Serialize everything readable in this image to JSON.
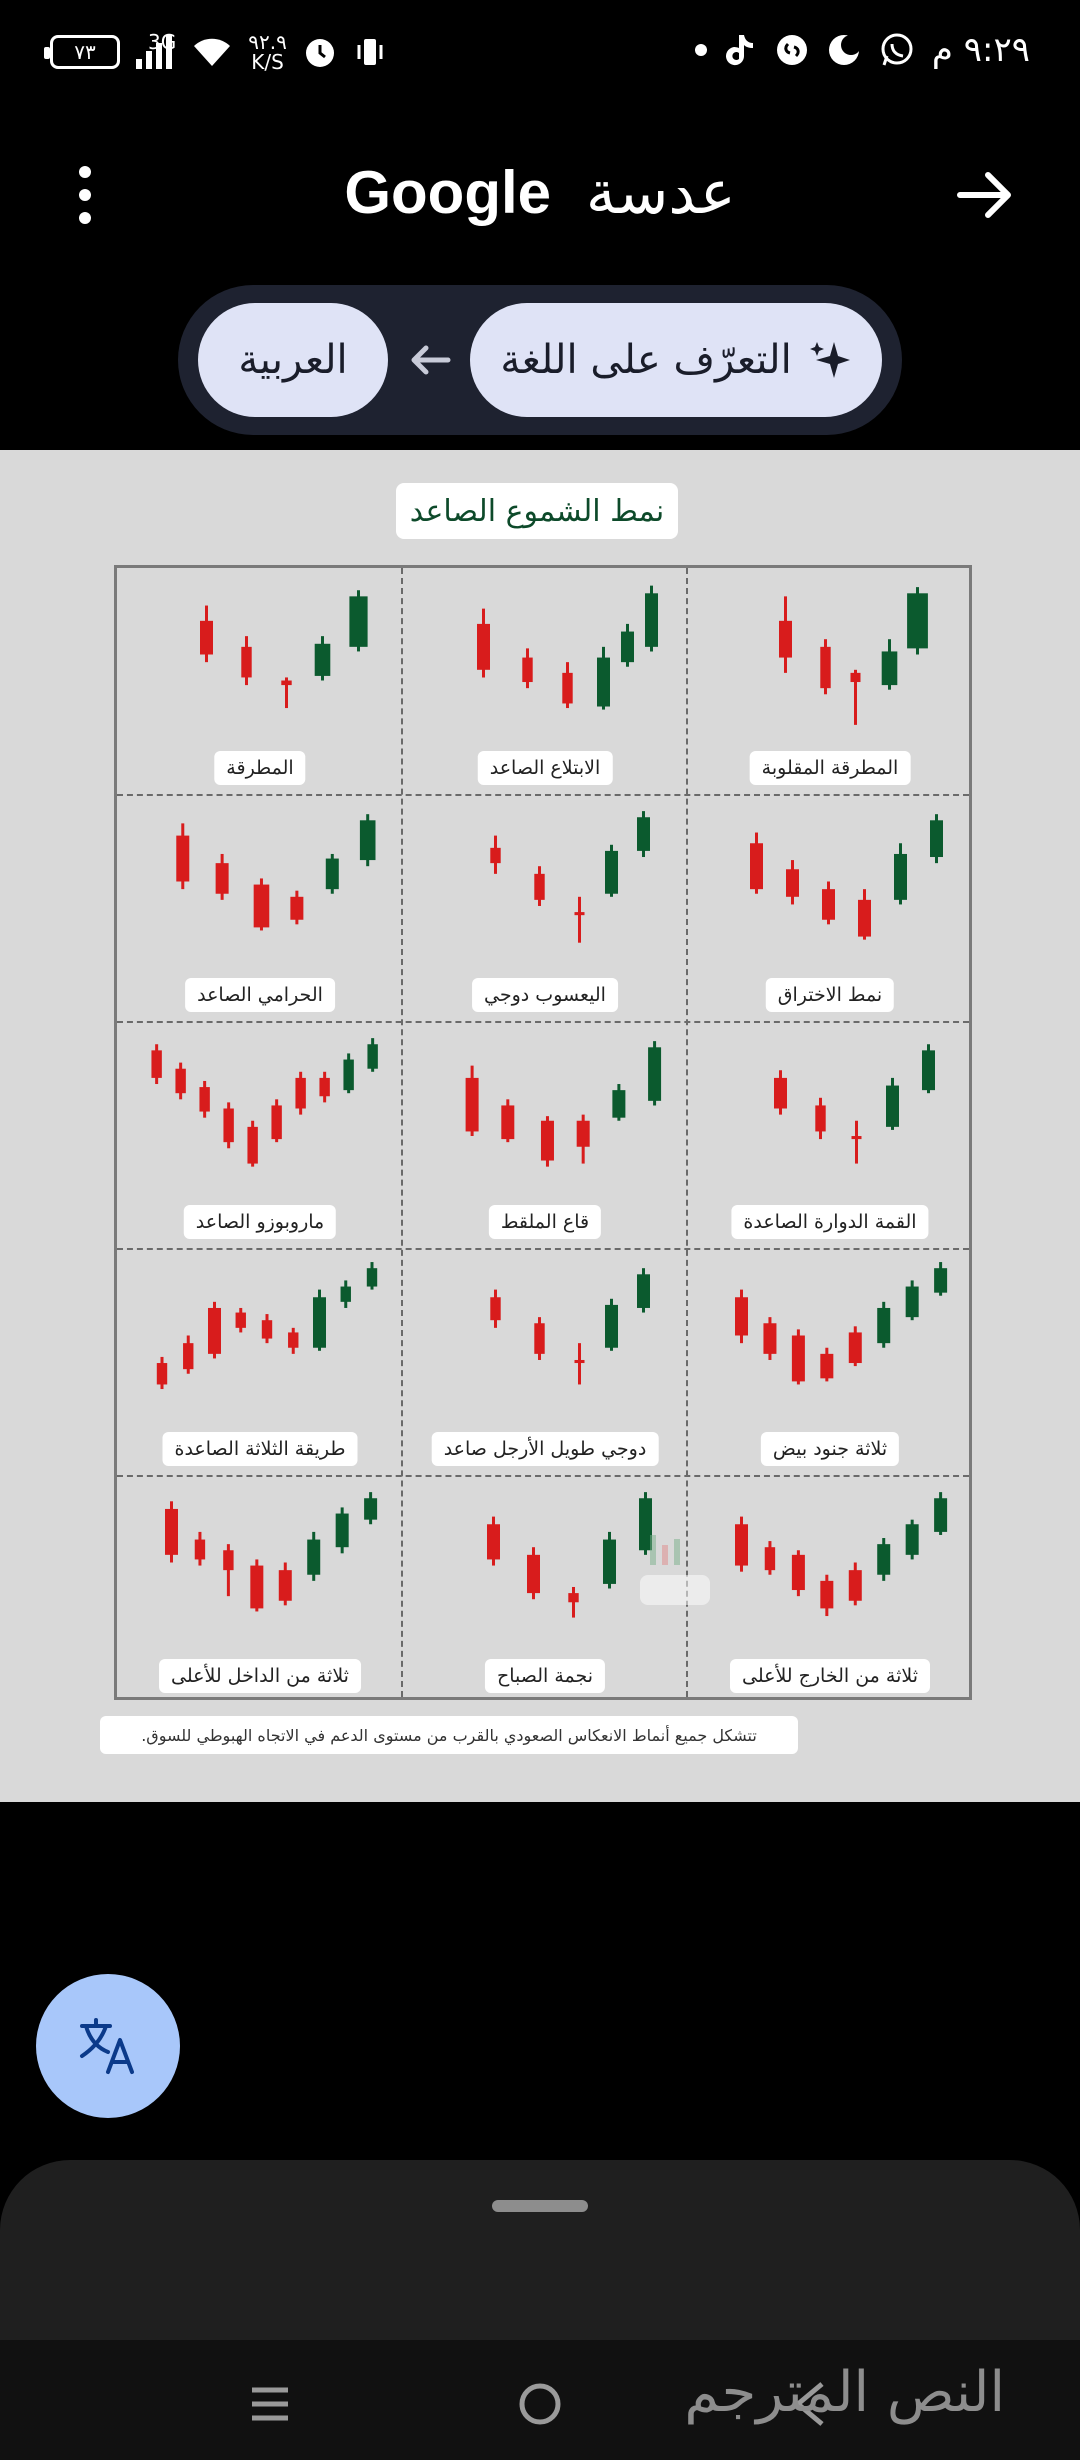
{
  "status_bar": {
    "time": "٩:٢٩ م",
    "battery": "٧٣",
    "network": "3G",
    "data_speed_value": "٩٢.٩",
    "data_speed_unit": "K/S",
    "icons": [
      "whatsapp-icon",
      "moon-icon",
      "shazam-icon",
      "tiktok-icon",
      "dot-icon",
      "vibrate-icon",
      "alarm-icon",
      "wifi-icon",
      "signal-icon",
      "battery-icon"
    ]
  },
  "header": {
    "brand": "Google",
    "app_name": "عدسة",
    "menu_icon": "more-vert-icon",
    "back_icon": "arrow-forward-icon"
  },
  "language": {
    "from_label": "التعرّف على اللغة",
    "to_label": "العربية",
    "from_icon": "sparkle-icon",
    "arrow_icon": "arrow-left-icon"
  },
  "image": {
    "title": "نمط الشموع الصاعد",
    "patterns": [
      {
        "label": "المطرقة المقلوبة",
        "candles": [
          [
            0.3,
            0.05,
            0.28,
            0.52,
            0.12,
            0.62
          ],
          [
            0.5,
            0.04,
            0.45,
            0.72,
            0.4,
            0.76
          ],
          [
            0.65,
            0.03,
            0.62,
            0.68,
            0.6,
            0.96
          ],
          [
            0.82,
            0.06,
            0.48,
            0.7,
            0.4,
            0.73
          ],
          [
            0.96,
            0.08,
            0.1,
            0.46,
            0.06,
            0.5
          ]
        ]
      },
      {
        "label": "الابتلاع الصاعد",
        "candles": [
          [
            0.28,
            0.05,
            0.3,
            0.6,
            0.2,
            0.65
          ],
          [
            0.5,
            0.04,
            0.52,
            0.68,
            0.46,
            0.72
          ],
          [
            0.7,
            0.04,
            0.62,
            0.82,
            0.55,
            0.85
          ],
          [
            0.88,
            0.05,
            0.52,
            0.84,
            0.45,
            0.86
          ],
          [
            1.0,
            0.05,
            0.35,
            0.55,
            0.3,
            0.58
          ],
          [
            1.12,
            0.05,
            0.1,
            0.45,
            0.05,
            0.48
          ]
        ]
      },
      {
        "label": "المطرقة",
        "candles": [
          [
            0.3,
            0.05,
            0.28,
            0.5,
            0.18,
            0.55
          ],
          [
            0.5,
            0.04,
            0.45,
            0.65,
            0.38,
            0.7
          ],
          [
            0.7,
            0.04,
            0.67,
            0.7,
            0.65,
            0.85
          ],
          [
            0.88,
            0.06,
            0.43,
            0.64,
            0.38,
            0.67
          ],
          [
            1.06,
            0.07,
            0.12,
            0.45,
            0.08,
            0.48
          ]
        ]
      },
      {
        "label": "نمط الاختراق",
        "candles": [
          [
            0.22,
            0.05,
            0.25,
            0.55,
            0.18,
            0.58
          ],
          [
            0.4,
            0.05,
            0.42,
            0.6,
            0.36,
            0.65
          ],
          [
            0.58,
            0.05,
            0.55,
            0.75,
            0.5,
            0.78
          ],
          [
            0.76,
            0.05,
            0.62,
            0.86,
            0.55,
            0.88
          ],
          [
            0.94,
            0.05,
            0.32,
            0.62,
            0.25,
            0.65
          ],
          [
            1.12,
            0.05,
            0.1,
            0.34,
            0.06,
            0.38
          ]
        ]
      },
      {
        "label": "اليعسوب دوجي",
        "candles": [
          [
            0.3,
            0.04,
            0.28,
            0.38,
            0.2,
            0.45
          ],
          [
            0.52,
            0.04,
            0.45,
            0.62,
            0.4,
            0.66
          ],
          [
            0.72,
            0.02,
            0.7,
            0.72,
            0.6,
            0.9
          ],
          [
            0.88,
            0.05,
            0.3,
            0.58,
            0.26,
            0.6
          ],
          [
            1.04,
            0.05,
            0.08,
            0.3,
            0.04,
            0.34
          ]
        ]
      },
      {
        "label": "الحرامي الصاعد",
        "candles": [
          [
            0.22,
            0.05,
            0.2,
            0.5,
            0.12,
            0.55
          ],
          [
            0.42,
            0.05,
            0.38,
            0.58,
            0.32,
            0.62
          ],
          [
            0.62,
            0.06,
            0.52,
            0.8,
            0.48,
            0.82
          ],
          [
            0.8,
            0.05,
            0.6,
            0.75,
            0.56,
            0.78
          ],
          [
            0.98,
            0.05,
            0.35,
            0.55,
            0.32,
            0.58
          ],
          [
            1.16,
            0.06,
            0.1,
            0.36,
            0.06,
            0.4
          ]
        ]
      },
      {
        "label": "القمة الدوارة الصاعدة",
        "candles": [
          [
            0.3,
            0.05,
            0.3,
            0.5,
            0.25,
            0.54
          ],
          [
            0.5,
            0.04,
            0.48,
            0.65,
            0.43,
            0.7
          ],
          [
            0.68,
            0.02,
            0.68,
            0.7,
            0.58,
            0.86
          ],
          [
            0.86,
            0.05,
            0.35,
            0.62,
            0.3,
            0.64
          ],
          [
            1.04,
            0.05,
            0.12,
            0.38,
            0.08,
            0.4
          ]
        ]
      },
      {
        "label": "قاع الملقط",
        "candles": [
          [
            0.24,
            0.05,
            0.3,
            0.65,
            0.22,
            0.68
          ],
          [
            0.42,
            0.05,
            0.48,
            0.7,
            0.44,
            0.72
          ],
          [
            0.62,
            0.05,
            0.58,
            0.84,
            0.55,
            0.88
          ],
          [
            0.8,
            0.05,
            0.58,
            0.75,
            0.54,
            0.86
          ],
          [
            0.98,
            0.05,
            0.38,
            0.56,
            0.34,
            0.58
          ],
          [
            1.16,
            0.05,
            0.1,
            0.45,
            0.06,
            0.48
          ]
        ]
      },
      {
        "label": "ماروبوزو الصاعد",
        "candles": [
          [
            0.1,
            0.04,
            0.12,
            0.3,
            0.08,
            0.34
          ],
          [
            0.24,
            0.04,
            0.24,
            0.4,
            0.2,
            0.44
          ],
          [
            0.38,
            0.04,
            0.36,
            0.52,
            0.32,
            0.56
          ],
          [
            0.52,
            0.04,
            0.5,
            0.72,
            0.46,
            0.76
          ],
          [
            0.66,
            0.04,
            0.62,
            0.86,
            0.58,
            0.88
          ],
          [
            0.8,
            0.04,
            0.48,
            0.7,
            0.44,
            0.72
          ],
          [
            0.94,
            0.04,
            0.3,
            0.5,
            0.26,
            0.54
          ],
          [
            1.08,
            0.04,
            0.3,
            0.42,
            0.26,
            0.46
          ],
          [
            1.22,
            0.04,
            0.18,
            0.38,
            0.14,
            0.4
          ],
          [
            1.36,
            0.04,
            0.08,
            0.24,
            0.04,
            0.26
          ]
        ]
      },
      {
        "label": "ثلاثة جنود بيض",
        "candles": [
          [
            0.18,
            0.05,
            0.25,
            0.5,
            0.2,
            0.55
          ],
          [
            0.34,
            0.05,
            0.42,
            0.62,
            0.38,
            0.66
          ],
          [
            0.5,
            0.05,
            0.5,
            0.8,
            0.46,
            0.82
          ],
          [
            0.66,
            0.05,
            0.62,
            0.78,
            0.58,
            0.8
          ],
          [
            0.82,
            0.05,
            0.48,
            0.68,
            0.44,
            0.7
          ],
          [
            0.98,
            0.05,
            0.32,
            0.55,
            0.28,
            0.58
          ],
          [
            1.14,
            0.05,
            0.18,
            0.38,
            0.14,
            0.4
          ],
          [
            1.3,
            0.05,
            0.06,
            0.22,
            0.02,
            0.24
          ]
        ]
      },
      {
        "label": "دوجي طويل الأرجل صاعد",
        "candles": [
          [
            0.3,
            0.04,
            0.25,
            0.4,
            0.2,
            0.45
          ],
          [
            0.52,
            0.04,
            0.42,
            0.62,
            0.38,
            0.66
          ],
          [
            0.72,
            0.02,
            0.66,
            0.68,
            0.55,
            0.82
          ],
          [
            0.88,
            0.05,
            0.3,
            0.58,
            0.26,
            0.6
          ],
          [
            1.04,
            0.05,
            0.1,
            0.32,
            0.06,
            0.35
          ]
        ]
      },
      {
        "label": "طريقة الثلاثة الصاعدة",
        "candles": [
          [
            0.12,
            0.04,
            0.68,
            0.82,
            0.64,
            0.85
          ],
          [
            0.26,
            0.04,
            0.55,
            0.72,
            0.5,
            0.75
          ],
          [
            0.4,
            0.05,
            0.32,
            0.62,
            0.28,
            0.65
          ],
          [
            0.54,
            0.04,
            0.35,
            0.45,
            0.32,
            0.48
          ],
          [
            0.68,
            0.04,
            0.4,
            0.52,
            0.36,
            0.55
          ],
          [
            0.82,
            0.04,
            0.48,
            0.58,
            0.45,
            0.62
          ],
          [
            0.96,
            0.05,
            0.25,
            0.58,
            0.2,
            0.6
          ],
          [
            1.1,
            0.04,
            0.18,
            0.28,
            0.14,
            0.32
          ],
          [
            1.24,
            0.04,
            0.06,
            0.18,
            0.02,
            0.2
          ]
        ]
      },
      {
        "label": "ثلاثة من الخارج للأعلى",
        "candles": [
          [
            0.18,
            0.05,
            0.25,
            0.52,
            0.2,
            0.56
          ],
          [
            0.34,
            0.04,
            0.4,
            0.55,
            0.36,
            0.58
          ],
          [
            0.5,
            0.05,
            0.45,
            0.68,
            0.42,
            0.72
          ],
          [
            0.66,
            0.05,
            0.62,
            0.8,
            0.58,
            0.85
          ],
          [
            0.82,
            0.05,
            0.55,
            0.75,
            0.5,
            0.78
          ],
          [
            0.98,
            0.05,
            0.38,
            0.58,
            0.34,
            0.62
          ],
          [
            1.14,
            0.05,
            0.25,
            0.45,
            0.22,
            0.48
          ],
          [
            1.3,
            0.05,
            0.08,
            0.3,
            0.04,
            0.32
          ]
        ]
      },
      {
        "label": "نجمة الصباح",
        "candles": [
          [
            0.3,
            0.05,
            0.25,
            0.48,
            0.2,
            0.52
          ],
          [
            0.5,
            0.05,
            0.45,
            0.7,
            0.4,
            0.74
          ],
          [
            0.7,
            0.04,
            0.7,
            0.76,
            0.66,
            0.86
          ],
          [
            0.88,
            0.05,
            0.35,
            0.64,
            0.3,
            0.67
          ],
          [
            1.06,
            0.05,
            0.08,
            0.42,
            0.04,
            0.45
          ]
        ]
      },
      {
        "label": "ثلاثة من الداخل للأعلى",
        "candles": [
          [
            0.18,
            0.05,
            0.15,
            0.45,
            0.1,
            0.5
          ],
          [
            0.34,
            0.04,
            0.35,
            0.48,
            0.3,
            0.52
          ],
          [
            0.5,
            0.04,
            0.42,
            0.55,
            0.38,
            0.72
          ],
          [
            0.66,
            0.05,
            0.52,
            0.8,
            0.48,
            0.82
          ],
          [
            0.82,
            0.05,
            0.55,
            0.75,
            0.5,
            0.78
          ],
          [
            0.98,
            0.05,
            0.35,
            0.58,
            0.3,
            0.62
          ],
          [
            1.14,
            0.05,
            0.18,
            0.4,
            0.14,
            0.44
          ],
          [
            1.3,
            0.05,
            0.08,
            0.22,
            0.04,
            0.25
          ]
        ]
      }
    ],
    "footnote": "تتشكل جميع أنماط الانعكاس الصعودي بالقرب من مستوى الدعم في الاتجاه الهبوطي للسوق.",
    "watermark_icon": "watermark-logo-icon"
  },
  "fab": {
    "icon": "translate-icon"
  },
  "bottom_sheet": {
    "translated_text_label": "النص المترجم"
  },
  "navbar": {
    "recent_icon": "recents-icon",
    "home_icon": "home-icon",
    "back_icon": "back-icon"
  },
  "colors": {
    "bullish": "#0b5a2e",
    "bearish": "#d81c1c",
    "pill_bg": "#dfe3f6",
    "fab_bg": "#a8c7fa"
  }
}
